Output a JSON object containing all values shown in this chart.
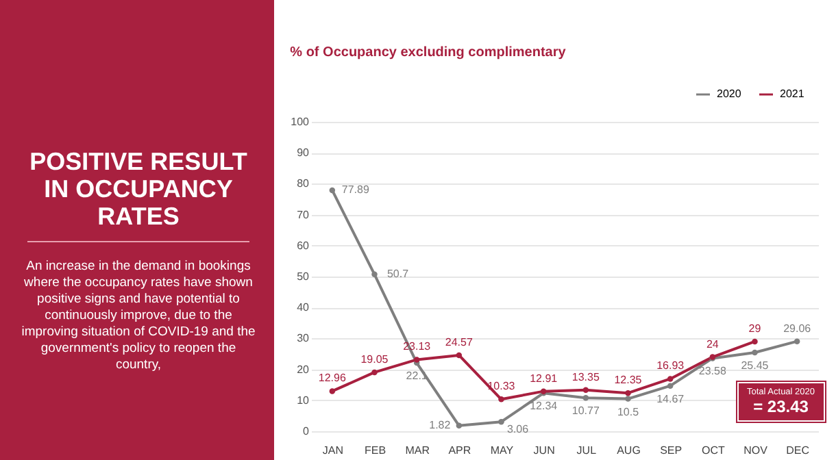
{
  "chart_data": {
    "type": "line",
    "title": "% of Occupancy excluding complimentary",
    "categories": [
      "JAN",
      "FEB",
      "MAR",
      "APR",
      "MAY",
      "JUN",
      "JUL",
      "AUG",
      "SEP",
      "OCT",
      "NOV",
      "DEC"
    ],
    "series": [
      {
        "name": "2020",
        "color": "#7f7f7f",
        "values": [
          77.89,
          50.7,
          22.1,
          1.82,
          3.06,
          12.34,
          10.77,
          10.5,
          14.67,
          23.58,
          25.45,
          29.06
        ]
      },
      {
        "name": "2021",
        "color": "#a8203f",
        "values": [
          12.96,
          19.05,
          23.13,
          24.57,
          10.33,
          12.91,
          13.35,
          12.35,
          16.93,
          24,
          29,
          null
        ]
      }
    ],
    "ylim": [
      0,
      100
    ],
    "yticks": [
      0,
      10,
      20,
      30,
      40,
      50,
      60,
      70,
      80,
      90,
      100
    ],
    "grid": "y",
    "legend": "top right",
    "marker": "circle",
    "data_labels": true,
    "annotations": [
      "POSITIVE RESULT IN OCCUPANCY RATES",
      "An increase in the demand in bookings where the occupancy rates have shown positive signs and have potential to continuously improve, due to the improving situation of COVID-19 and the government's policy to reopen the country,",
      "Total Actual 2020",
      "= 23.43"
    ]
  }
}
